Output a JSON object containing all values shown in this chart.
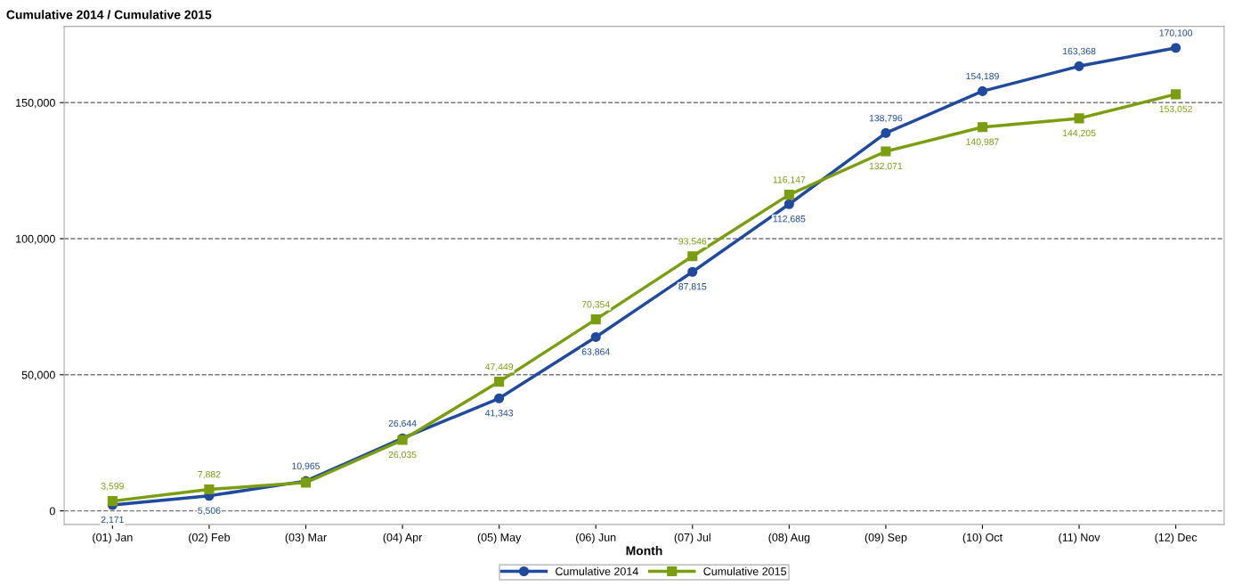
{
  "chart_data": {
    "type": "line",
    "title": "Cumulative 2014 / Cumulative 2015",
    "xlabel": "Month",
    "categories": [
      "(01) Jan",
      "(02) Feb",
      "(03) Mar",
      "(04) Apr",
      "(05) May",
      "(06) Jun",
      "(07) Jul",
      "(08) Aug",
      "(09) Sep",
      "(10) Oct",
      "(11) Nov",
      "(12) Dec"
    ],
    "series": [
      {
        "name": "Cumulative 2014",
        "color": "#1f4a9e",
        "marker": "circle",
        "values": [
          2171,
          5506,
          10965,
          26644,
          41343,
          63864,
          87815,
          112685,
          138796,
          154189,
          163368,
          170100
        ],
        "value_labels": [
          "2,171",
          "5,506",
          "10,965",
          "26,644",
          "41,343",
          "63,864",
          "87,815",
          "112,685",
          "138,796",
          "154,189",
          "163,368",
          "170,100"
        ]
      },
      {
        "name": "Cumulative 2015",
        "color": "#7a9e0f",
        "marker": "square",
        "values": [
          3599,
          7882,
          10400,
          26035,
          47449,
          70354,
          93546,
          116147,
          132071,
          140987,
          144205,
          153052
        ],
        "value_labels": [
          "3,599",
          "7,882",
          null,
          "26,035",
          "47,449",
          "70,354",
          "93,546",
          "116,147",
          "132,071",
          "140,987",
          "144,205",
          "153,052"
        ]
      }
    ],
    "ylim": [
      -5000,
      178000
    ],
    "yticks": [
      {
        "value": 0,
        "label": "0"
      },
      {
        "value": 50000,
        "label": "50,000"
      },
      {
        "value": 100000,
        "label": "100,000"
      },
      {
        "value": 150000,
        "label": "150,000"
      }
    ],
    "grid": "y",
    "legend": "bottom",
    "line_style": "solid"
  }
}
